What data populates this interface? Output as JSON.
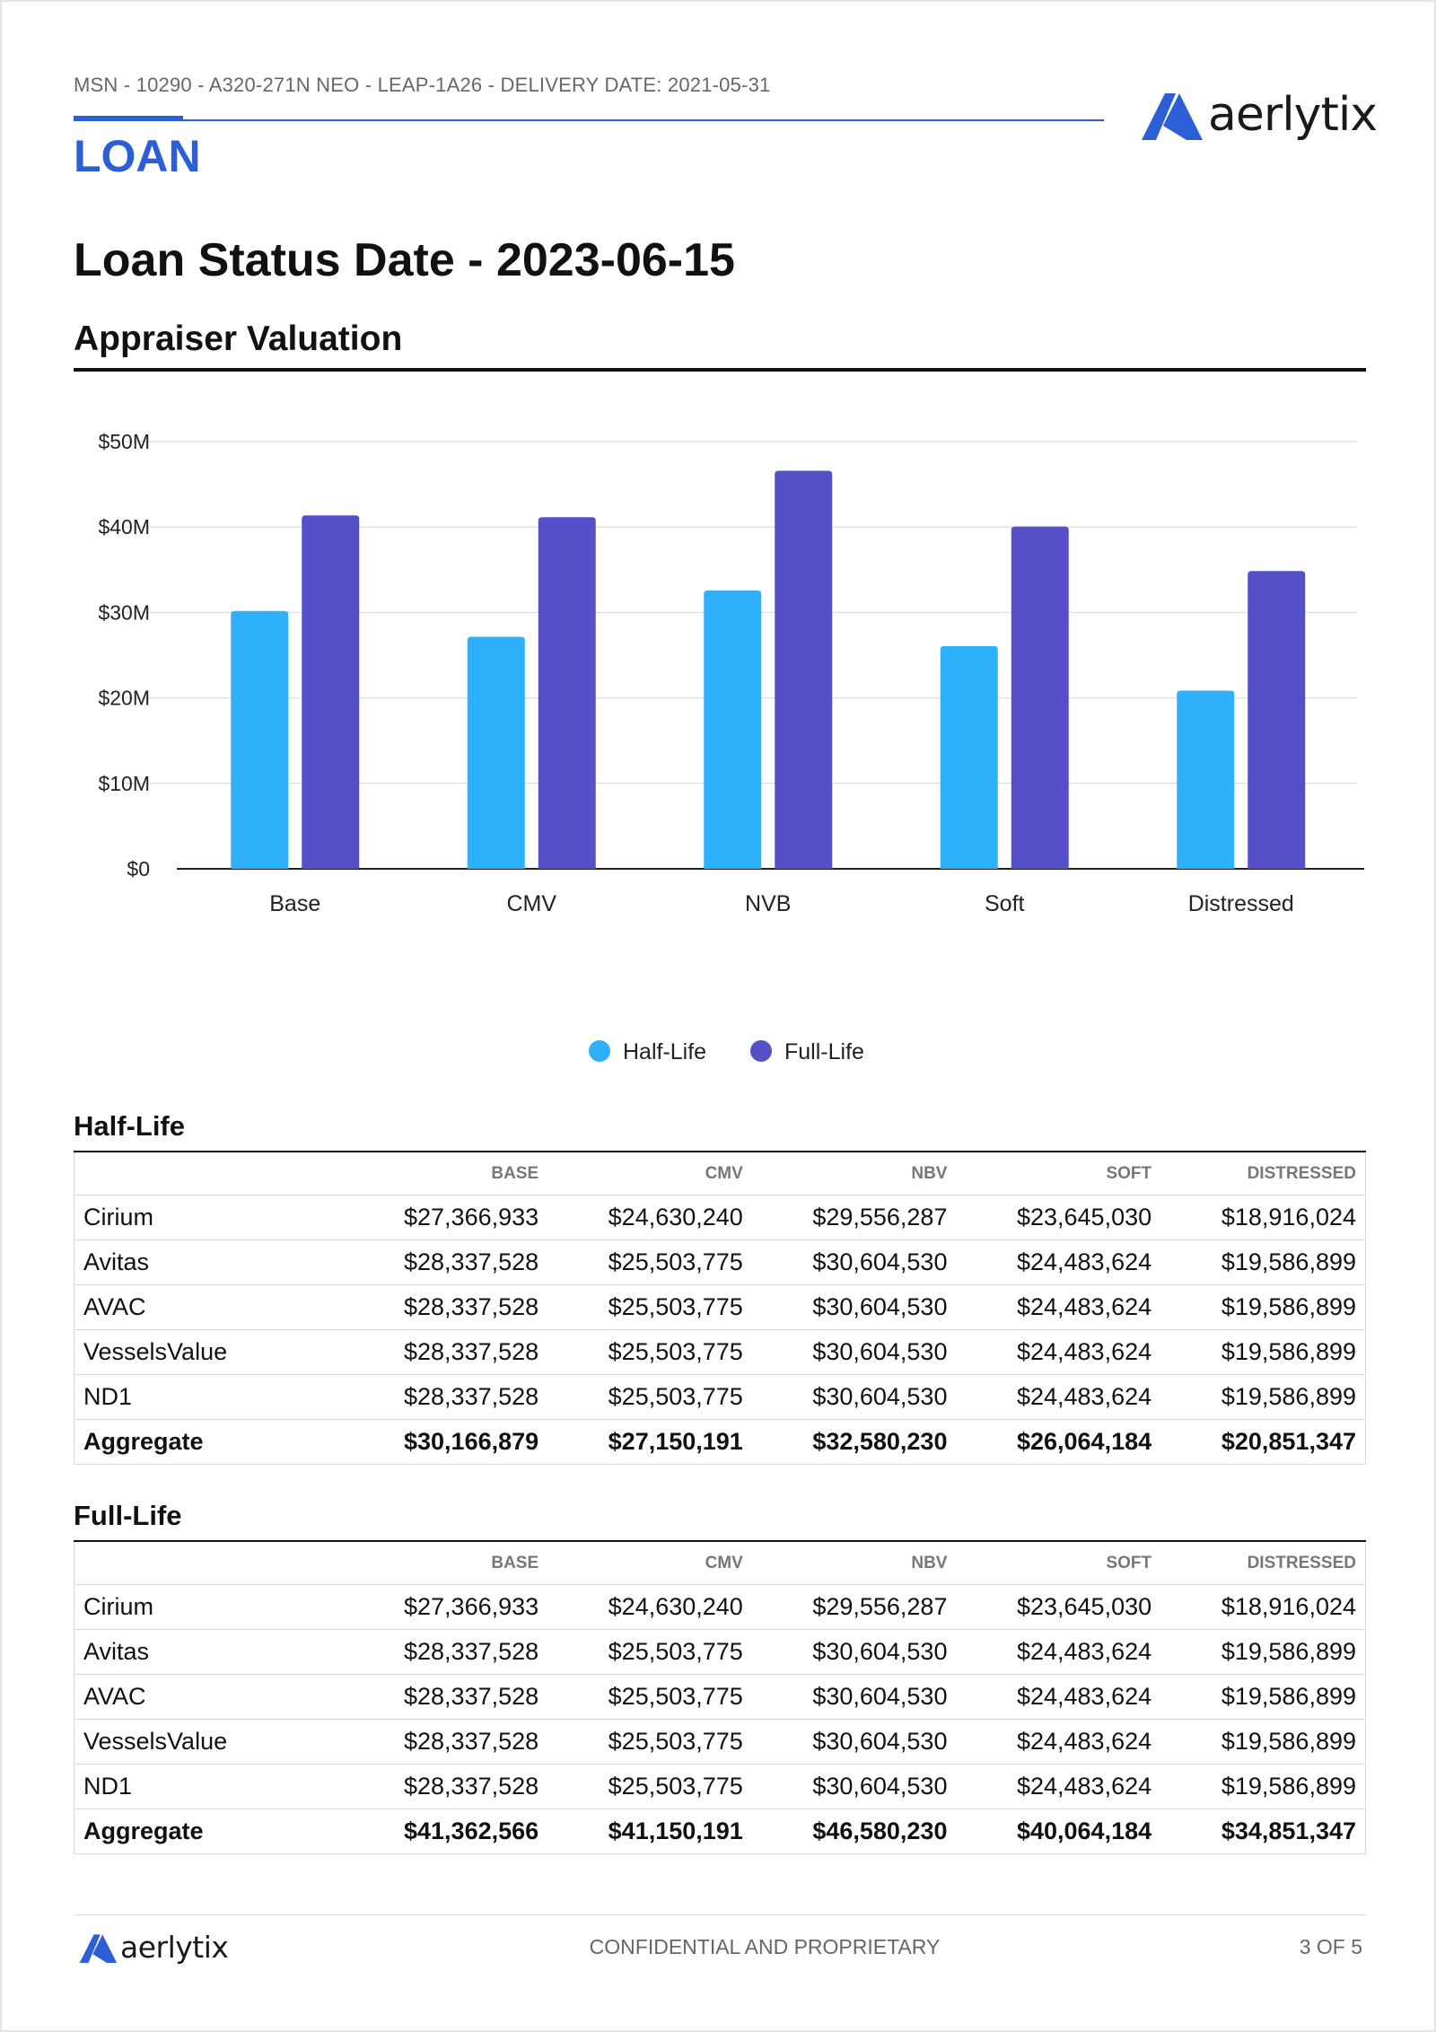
{
  "header": {
    "meta": "MSN - 10290 - A320-271N NEO - LEAP-1A26 - DELIVERY DATE: 2021-05-31",
    "section": "LOAN",
    "logo_text": "aerlytix"
  },
  "title": "Loan Status Date - 2023-06-15",
  "subtitle": "Appraiser Valuation",
  "colors": {
    "accent": "#2c5fd6",
    "half_life": "#2eb0fb",
    "full_life": "#5550c8"
  },
  "chart_data": {
    "type": "bar",
    "categories": [
      "Base",
      "CMV",
      "NVB",
      "Soft",
      "Distressed"
    ],
    "series": [
      {
        "name": "Half-Life",
        "values": [
          30166879,
          27150191,
          32580230,
          26064184,
          20851347
        ]
      },
      {
        "name": "Full-Life",
        "values": [
          41362566,
          41150191,
          46580230,
          40064184,
          34851347
        ]
      }
    ],
    "ylim": [
      0,
      50000000
    ],
    "yticks": [
      0,
      10000000,
      20000000,
      30000000,
      40000000,
      50000000
    ],
    "ytick_labels": [
      "$0",
      "$10M",
      "$20M",
      "$30M",
      "$40M",
      "$50M"
    ],
    "grid": true,
    "legend": "bottom-center",
    "title": "",
    "xlabel": "",
    "ylabel": ""
  },
  "tables": [
    {
      "title": "Half-Life",
      "columns": [
        "",
        "BASE",
        "CMV",
        "NBV",
        "SOFT",
        "DISTRESSED"
      ],
      "rows": [
        [
          "Cirium",
          "$27,366,933",
          "$24,630,240",
          "$29,556,287",
          "$23,645,030",
          "$18,916,024"
        ],
        [
          "Avitas",
          "$28,337,528",
          "$25,503,775",
          "$30,604,530",
          "$24,483,624",
          "$19,586,899"
        ],
        [
          "AVAC",
          "$28,337,528",
          "$25,503,775",
          "$30,604,530",
          "$24,483,624",
          "$19,586,899"
        ],
        [
          "VesselsValue",
          "$28,337,528",
          "$25,503,775",
          "$30,604,530",
          "$24,483,624",
          "$19,586,899"
        ],
        [
          "ND1",
          "$28,337,528",
          "$25,503,775",
          "$30,604,530",
          "$24,483,624",
          "$19,586,899"
        ],
        [
          "Aggregate",
          "$30,166,879",
          "$27,150,191",
          "$32,580,230",
          "$26,064,184",
          "$20,851,347"
        ]
      ]
    },
    {
      "title": "Full-Life",
      "columns": [
        "",
        "BASE",
        "CMV",
        "NBV",
        "SOFT",
        "DISTRESSED"
      ],
      "rows": [
        [
          "Cirium",
          "$27,366,933",
          "$24,630,240",
          "$29,556,287",
          "$23,645,030",
          "$18,916,024"
        ],
        [
          "Avitas",
          "$28,337,528",
          "$25,503,775",
          "$30,604,530",
          "$24,483,624",
          "$19,586,899"
        ],
        [
          "AVAC",
          "$28,337,528",
          "$25,503,775",
          "$30,604,530",
          "$24,483,624",
          "$19,586,899"
        ],
        [
          "VesselsValue",
          "$28,337,528",
          "$25,503,775",
          "$30,604,530",
          "$24,483,624",
          "$19,586,899"
        ],
        [
          "ND1",
          "$28,337,528",
          "$25,503,775",
          "$30,604,530",
          "$24,483,624",
          "$19,586,899"
        ],
        [
          "Aggregate",
          "$41,362,566",
          "$41,150,191",
          "$46,580,230",
          "$40,064,184",
          "$34,851,347"
        ]
      ]
    }
  ],
  "footer": {
    "center": "CONFIDENTIAL AND PROPRIETARY",
    "page": "3 OF 5",
    "logo_text": "aerlytix"
  }
}
